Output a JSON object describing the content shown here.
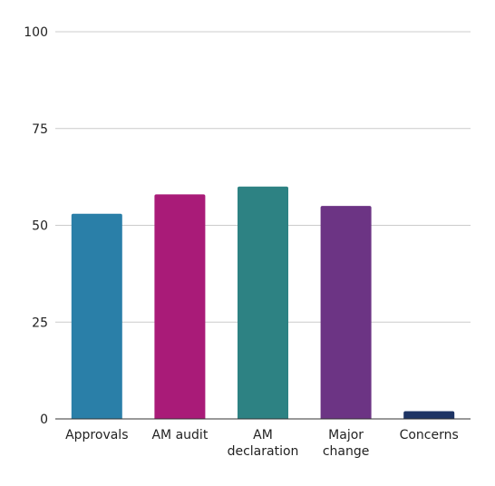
{
  "chart_data": {
    "type": "bar",
    "categories": [
      [
        "Approvals"
      ],
      [
        "AM audit"
      ],
      [
        "AM",
        "declaration"
      ],
      [
        "Major",
        "change"
      ],
      [
        "Concerns"
      ]
    ],
    "values": [
      53,
      58,
      60,
      55,
      2
    ],
    "colors": [
      "#2a7fa8",
      "#a91b78",
      "#2d8283",
      "#6c3484",
      "#1e3464"
    ],
    "ylim": [
      0,
      100
    ],
    "yticks": [
      0,
      25,
      50,
      75,
      100
    ],
    "grid": true,
    "title": "",
    "xlabel": "",
    "ylabel": "",
    "legend": "none"
  }
}
